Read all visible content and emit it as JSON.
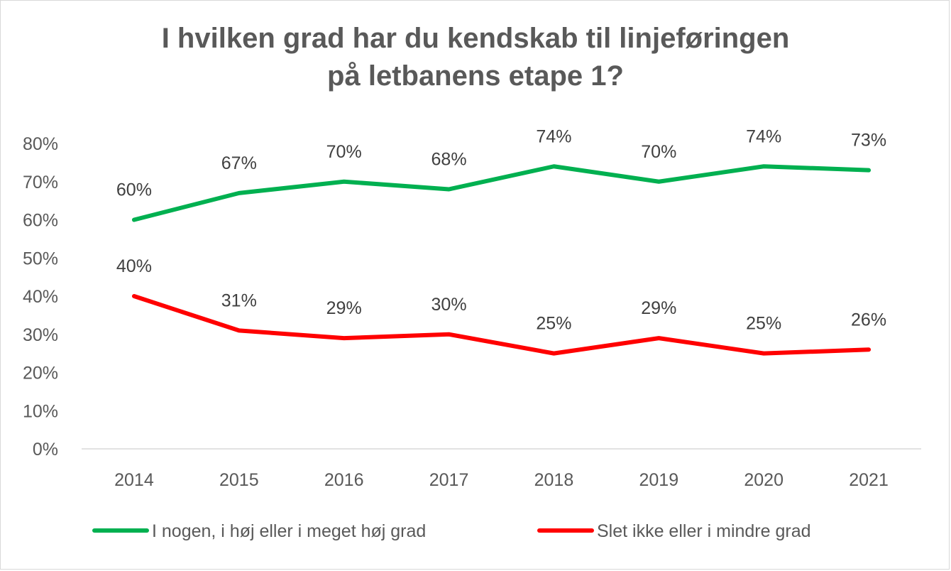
{
  "chart_data": {
    "type": "line",
    "title": [
      "I hvilken grad har du kendskab til linjeføringen",
      "på letbanens etape 1?"
    ],
    "xlabel": "",
    "ylabel": "",
    "categories": [
      "2014",
      "2015",
      "2016",
      "2017",
      "2018",
      "2019",
      "2020",
      "2021"
    ],
    "ylim": [
      0,
      80
    ],
    "yticks": [
      "0%",
      "10%",
      "20%",
      "30%",
      "40%",
      "50%",
      "60%",
      "70%",
      "80%"
    ],
    "grid": false,
    "legend_position": "bottom",
    "series": [
      {
        "name": "I nogen, i høj eller i meget høj grad",
        "color": "#00b050",
        "values": [
          60,
          67,
          70,
          68,
          74,
          70,
          74,
          73
        ],
        "labels": [
          "60%",
          "67%",
          "70%",
          "68%",
          "74%",
          "70%",
          "74%",
          "73%"
        ]
      },
      {
        "name": "Slet ikke eller i mindre grad",
        "color": "#ff0000",
        "values": [
          40,
          31,
          29,
          30,
          25,
          29,
          25,
          26
        ],
        "labels": [
          "40%",
          "31%",
          "29%",
          "30%",
          "25%",
          "29%",
          "25%",
          "26%"
        ]
      }
    ]
  }
}
